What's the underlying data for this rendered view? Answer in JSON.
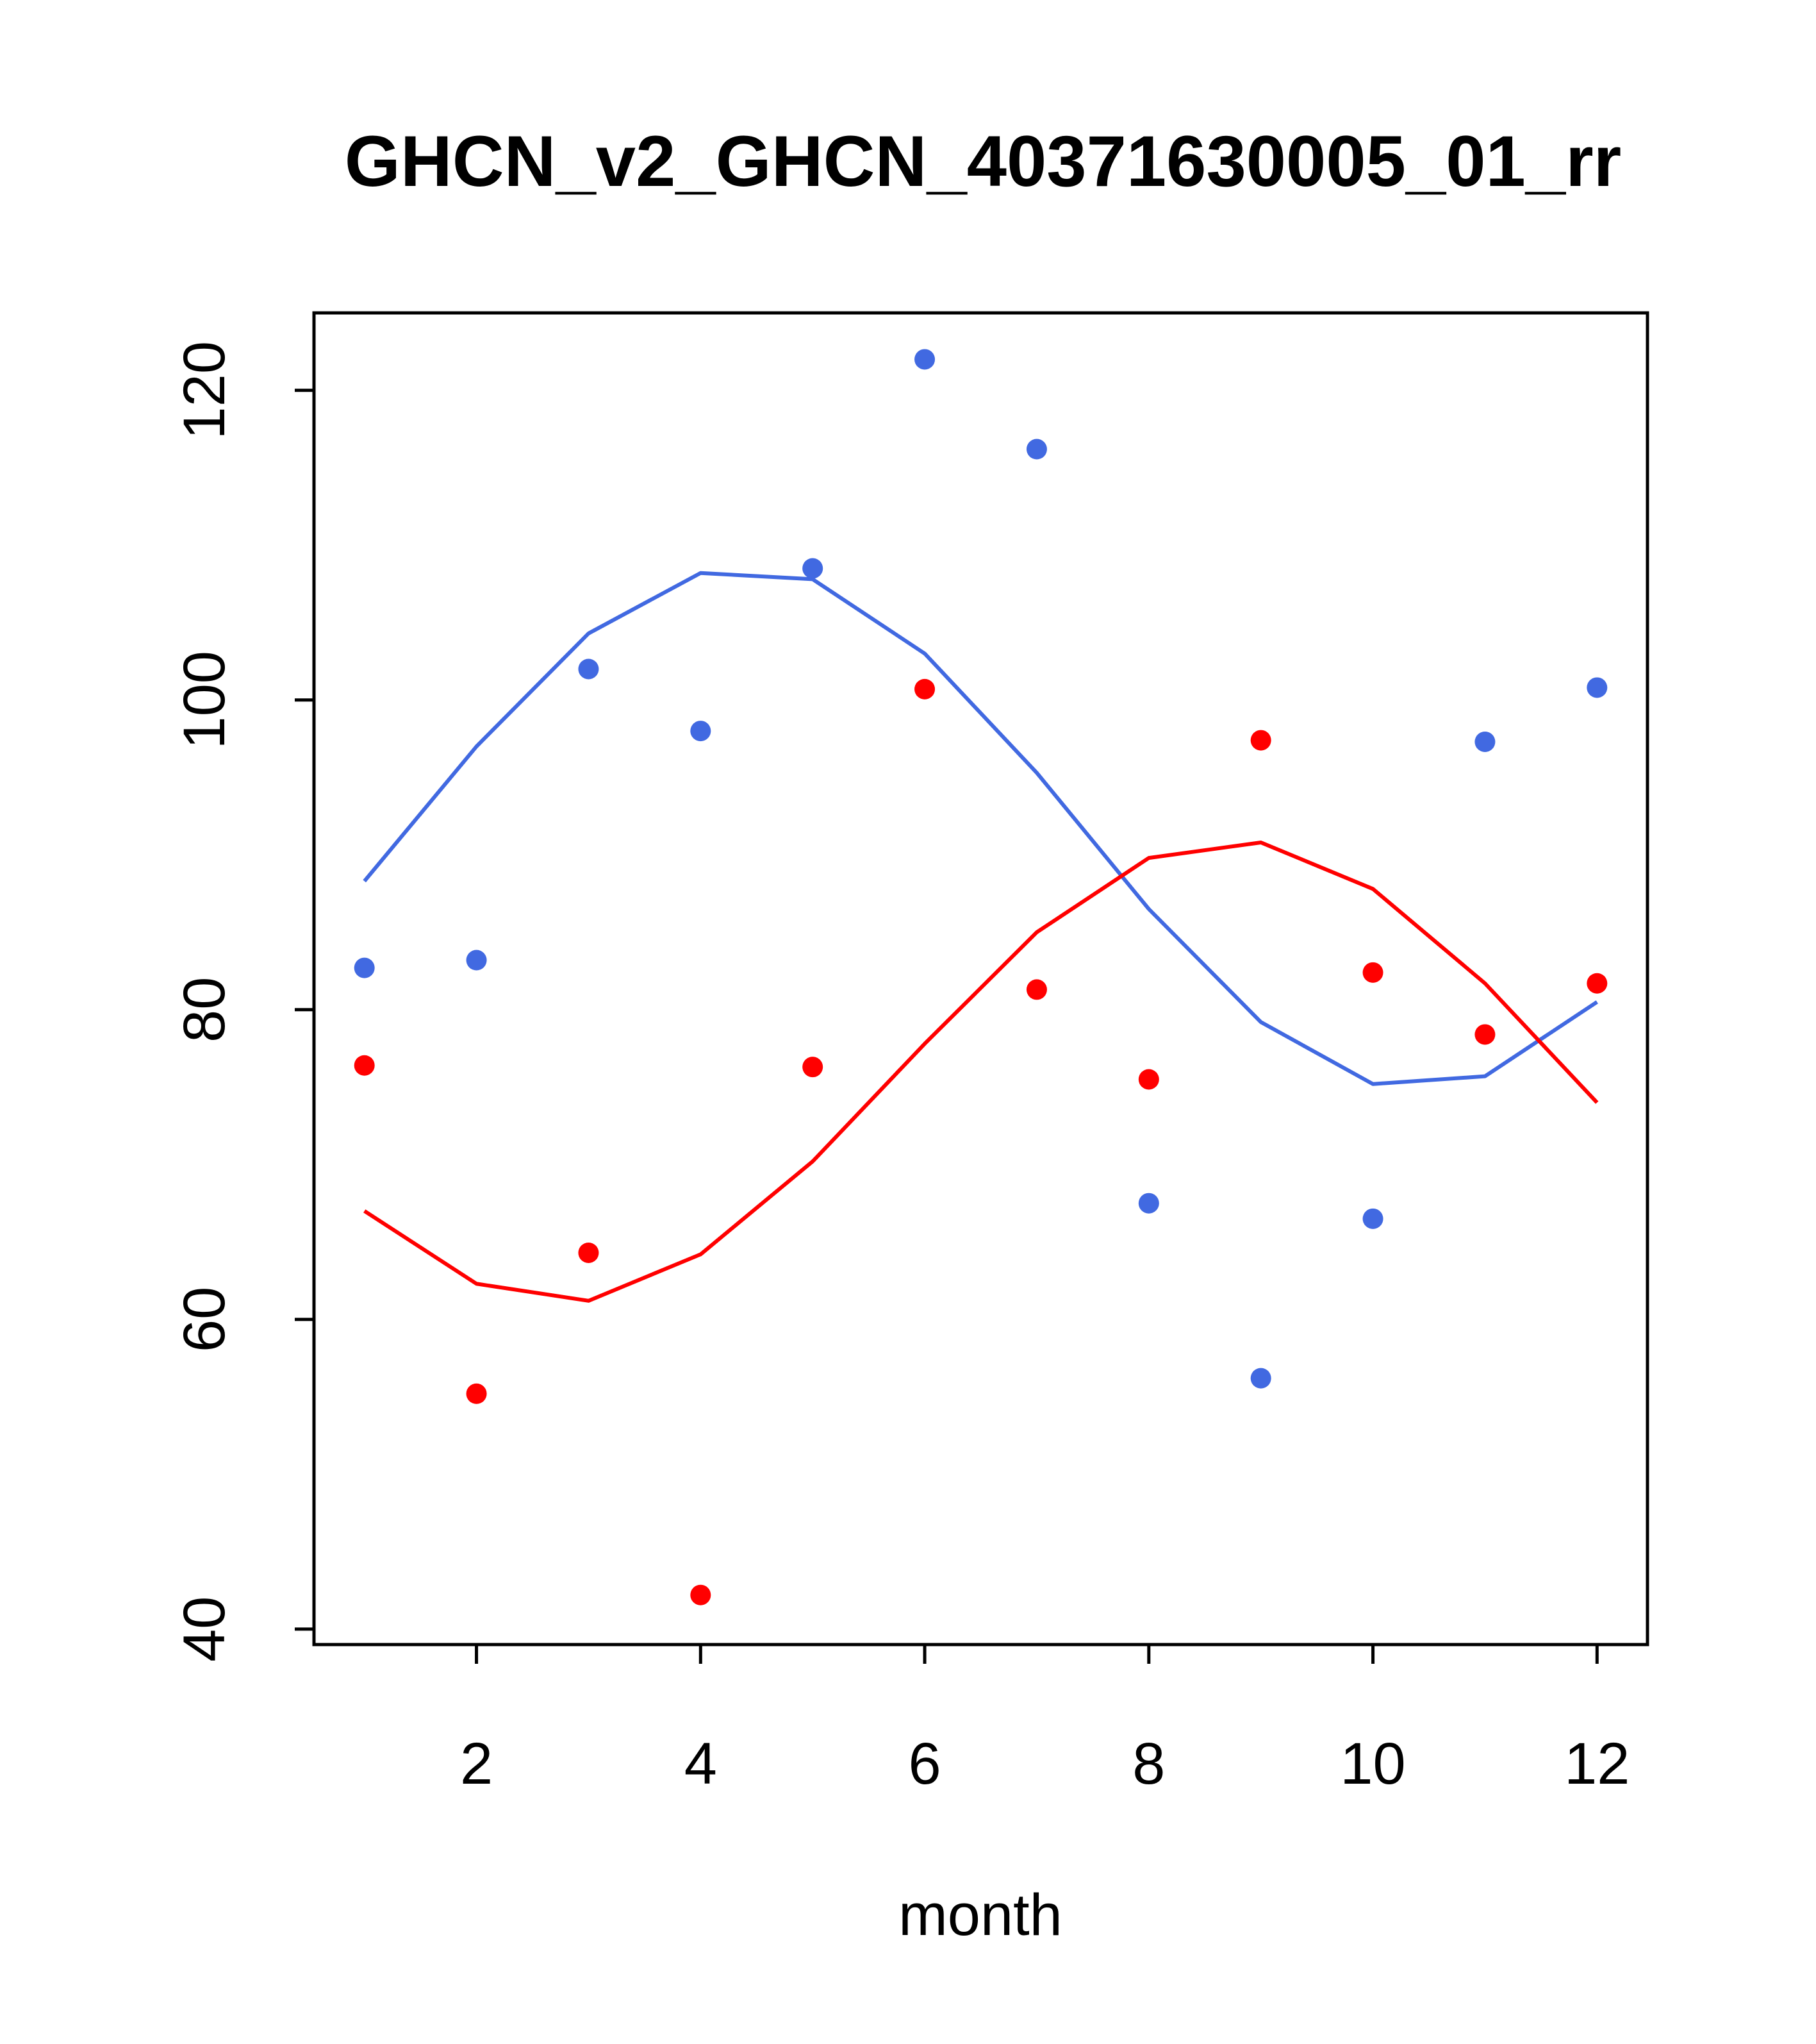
{
  "chart_data": {
    "type": "scatter",
    "title": "GHCN_v2_GHCN_40371630005_01_rr",
    "xlabel": "month",
    "ylabel": "",
    "xlim": [
      0.55,
      12.45
    ],
    "ylim": [
      39,
      125
    ],
    "xticks": [
      2,
      4,
      6,
      8,
      10,
      12
    ],
    "yticks": [
      40,
      60,
      80,
      100,
      120
    ],
    "grid": false,
    "series": [
      {
        "kind": "points",
        "color": "#4169e1",
        "x": [
          1,
          2,
          3,
          4,
          5,
          6,
          7,
          8,
          9,
          10,
          11,
          12
        ],
        "y": [
          82.7,
          83.2,
          102.0,
          98.0,
          108.5,
          122.0,
          116.2,
          67.5,
          56.2,
          66.5,
          97.3,
          100.8
        ]
      },
      {
        "kind": "points",
        "color": "#ff0000",
        "x": [
          1,
          2,
          3,
          4,
          5,
          6,
          7,
          8,
          9,
          10,
          11,
          12
        ],
        "y": [
          76.4,
          55.2,
          64.3,
          42.2,
          76.3,
          100.7,
          81.3,
          75.5,
          97.4,
          82.4,
          78.4,
          81.7
        ]
      },
      {
        "kind": "line",
        "color": "#4169e1",
        "x": [
          1,
          2,
          3,
          4,
          5,
          6,
          7,
          8,
          9,
          10,
          11,
          12
        ],
        "y": [
          88.3,
          97.0,
          104.3,
          108.2,
          107.8,
          103.0,
          95.3,
          86.5,
          79.2,
          75.2,
          75.7,
          80.5
        ]
      },
      {
        "kind": "line",
        "color": "#ff0000",
        "x": [
          1,
          2,
          3,
          4,
          5,
          6,
          7,
          8,
          9,
          10,
          11,
          12
        ],
        "y": [
          67.0,
          62.3,
          61.2,
          64.2,
          70.2,
          77.8,
          85.0,
          89.8,
          90.8,
          87.8,
          81.7,
          74.0
        ]
      }
    ]
  }
}
